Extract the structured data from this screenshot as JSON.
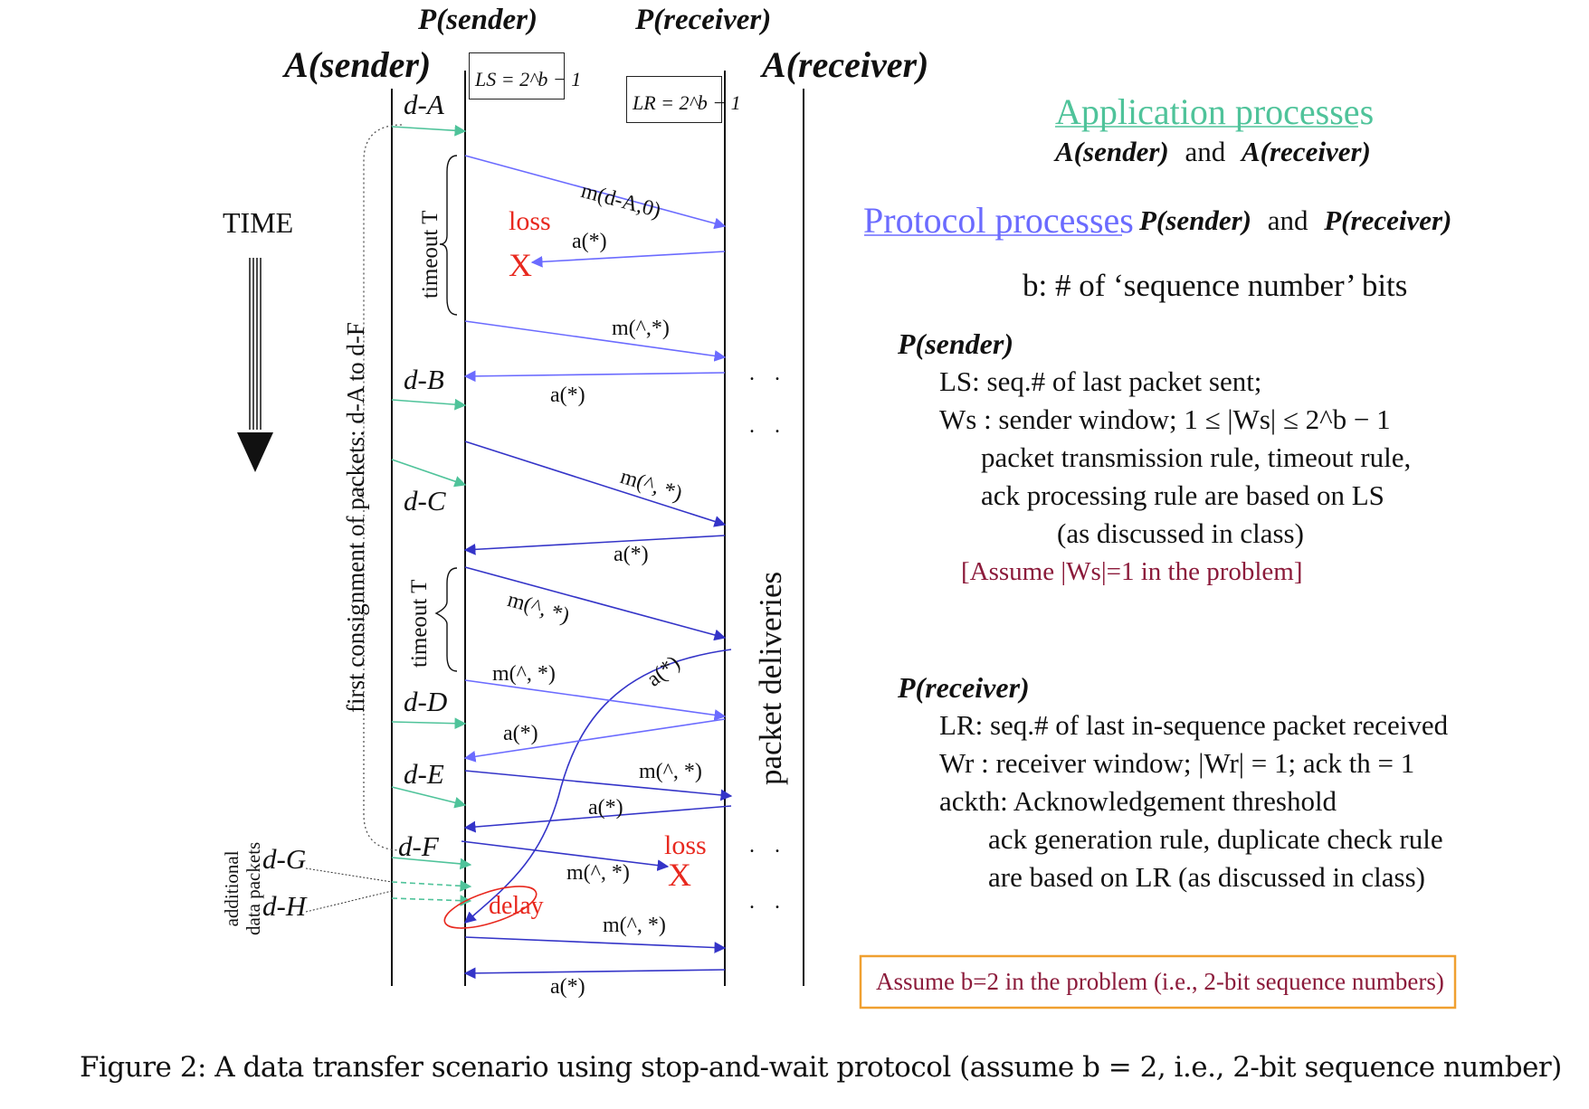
{
  "header": {
    "p_sender": "P(sender)",
    "p_receiver": "P(receiver)",
    "a_sender": "A(sender)",
    "a_receiver": "A(receiver)",
    "ls_formula": "LS = 2^b − 1",
    "lr_formula": "LR = 2^b − 1"
  },
  "left": {
    "time": "TIME",
    "consignment": "first consignment of packets:  d-A  to  d-F",
    "additional": [
      "additional",
      "data packets"
    ],
    "timeout1": "timeout T",
    "timeout2": "timeout T"
  },
  "data_labels": [
    "d-A",
    "d-B",
    "d-C",
    "d-D",
    "d-E",
    "d-F",
    "d-G",
    "d-H"
  ],
  "messages": {
    "m0": "m(d-A,0)",
    "loss1": "loss",
    "x1": "X",
    "a1": "a(*)",
    "m1": "m(^,*)",
    "a2": "a(*)",
    "m2": "m(^, *)",
    "a3": "a(*)",
    "m3": "m(^, *)",
    "a4": "a(*)",
    "m4": "m(^, *)",
    "a5": "a(*)",
    "m5": "m(^, *)",
    "a6": "a(*)",
    "loss2": "loss",
    "x2": "X",
    "m6": "m(^, *)",
    "delay": "delay",
    "m7": "m(^, *)",
    "a7": "a(*)"
  },
  "deliveries": {
    "label": "packet    deliveries",
    "dots": ". ."
  },
  "right": {
    "app_title": "Application processes",
    "app_sub_1": "A(sender)",
    "app_sub_and": "and",
    "app_sub_2": "A(receiver)",
    "proto_title": "Protocol processes",
    "proto_1": "P(sender)",
    "proto_and": "and",
    "proto_2": "P(receiver)",
    "b_def": "b: # of ‘sequence number’ bits",
    "ps_head": "P(sender)",
    "ps_ls": "LS: seq.# of last packet sent;",
    "ps_ws": "Ws : sender window;  1 ≤ |Ws| ≤ 2^b − 1",
    "ps_rule1": "packet transmission rule, timeout rule,",
    "ps_rule2": "ack processing rule are based on LS",
    "ps_rule3": "(as discussed in class)",
    "ps_assume": "[Assume |Ws|=1 in the problem]",
    "pr_head": "P(receiver)",
    "pr_lr": "LR: seq.# of last in-sequence packet received",
    "pr_wr": "Wr : receiver window;  |Wr| = 1;  ack th = 1",
    "pr_ackth": "ackth:  Acknowledgement threshold",
    "pr_rule1": "ack generation rule, duplicate check rule",
    "pr_rule2": "are based on LR (as discussed in class)",
    "assume_b": "Assume b=2 in the problem (i.e., 2-bit sequence numbers)"
  },
  "caption": "Figure 2:  A data transfer scenario using stop-and-wait protocol (assume b = 2, i.e., 2-bit sequence number)",
  "colors": {
    "app_green": "#4fc39a",
    "protocol_blue": "#6b6bff",
    "dark_blue": "#3434c8",
    "loss_red": "#e8281e",
    "assume_red": "#8b1a3a",
    "box_orange": "#f0a030"
  }
}
